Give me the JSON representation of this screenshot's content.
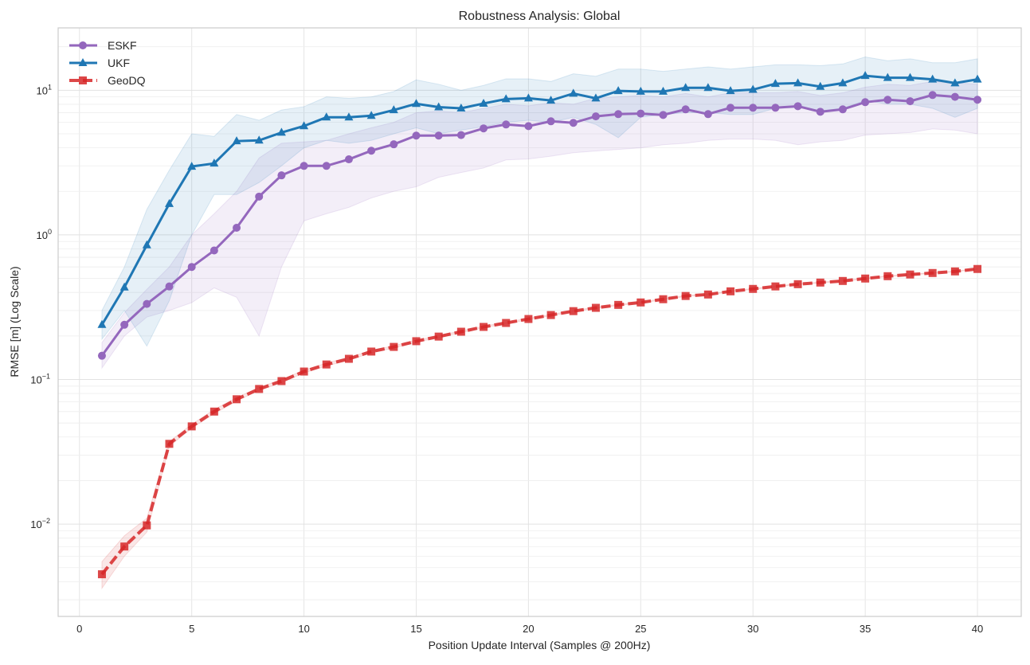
{
  "chart_data": {
    "type": "line",
    "title": "Robustness Analysis: Global",
    "xlabel": "Position Update Interval (Samples @ 200Hz)",
    "ylabel": "RMSE [m] (Log Scale)",
    "xlim": [
      -0.95,
      41.95
    ],
    "ylim": [
      0.0023,
      27
    ],
    "yscale": "log",
    "grid": true,
    "legend_position": "top-left",
    "xticks": [
      0,
      5,
      10,
      15,
      20,
      25,
      30,
      35,
      40
    ],
    "yticks": [
      {
        "value": 0.01,
        "base": "10",
        "exp": "−2"
      },
      {
        "value": 0.1,
        "base": "10",
        "exp": "−1"
      },
      {
        "value": 1,
        "base": "10",
        "exp": "0"
      },
      {
        "value": 10,
        "base": "10",
        "exp": "1"
      }
    ],
    "x": [
      1,
      2,
      3,
      4,
      5,
      6,
      7,
      8,
      9,
      10,
      11,
      12,
      13,
      14,
      15,
      16,
      17,
      18,
      19,
      20,
      21,
      22,
      23,
      24,
      25,
      26,
      27,
      28,
      29,
      30,
      31,
      32,
      33,
      34,
      35,
      36,
      37,
      38,
      39,
      40
    ],
    "series": [
      {
        "name": "ESKF",
        "color": "#9467bd",
        "marker": "circle",
        "linestyle": "solid",
        "values": [
          0.146,
          0.239,
          0.333,
          0.44,
          0.6,
          0.78,
          1.12,
          1.84,
          2.58,
          3.0,
          3.0,
          3.33,
          3.82,
          4.23,
          4.86,
          4.86,
          4.9,
          5.45,
          5.8,
          5.65,
          6.1,
          5.95,
          6.6,
          6.84,
          6.9,
          6.75,
          7.38,
          6.84,
          7.57,
          7.57,
          7.57,
          7.76,
          7.1,
          7.38,
          8.27,
          8.6,
          8.4,
          9.27,
          9.0,
          8.6
        ],
        "lower": [
          0.12,
          0.2,
          0.27,
          0.3,
          0.34,
          0.43,
          0.37,
          0.2,
          0.6,
          1.25,
          1.4,
          1.55,
          1.8,
          2.0,
          2.15,
          2.5,
          2.7,
          2.9,
          3.3,
          3.35,
          3.5,
          3.7,
          3.8,
          3.9,
          4.0,
          4.2,
          4.3,
          4.5,
          4.6,
          4.6,
          4.5,
          4.2,
          4.4,
          4.5,
          4.9,
          5.0,
          5.1,
          5.4,
          5.3,
          5.0
        ],
        "upper": [
          0.18,
          0.29,
          0.42,
          0.6,
          1.0,
          1.4,
          2.0,
          3.4,
          4.3,
          4.4,
          4.5,
          5.0,
          5.5,
          6.0,
          7.0,
          7.2,
          7.0,
          7.5,
          8.0,
          7.8,
          8.2,
          8.0,
          8.8,
          9.0,
          9.2,
          9.0,
          9.5,
          9.0,
          9.6,
          9.6,
          9.6,
          9.8,
          9.2,
          9.6,
          10.5,
          11.0,
          10.8,
          11.5,
          11.3,
          11.0
        ]
      },
      {
        "name": "UKF",
        "color": "#1f77b4",
        "marker": "triangle",
        "linestyle": "solid",
        "values": [
          0.239,
          0.434,
          0.85,
          1.64,
          2.97,
          3.12,
          4.45,
          4.5,
          5.1,
          5.66,
          6.5,
          6.5,
          6.67,
          7.3,
          8.07,
          7.65,
          7.5,
          8.1,
          8.7,
          8.8,
          8.5,
          9.5,
          8.8,
          9.9,
          9.8,
          9.8,
          10.4,
          10.4,
          9.9,
          10.1,
          11.1,
          11.2,
          10.6,
          11.2,
          12.6,
          12.2,
          12.2,
          11.9,
          11.2,
          11.9
        ],
        "lower": [
          0.19,
          0.3,
          0.17,
          0.35,
          1.0,
          1.9,
          1.9,
          2.3,
          3.0,
          4.0,
          4.5,
          4.3,
          4.5,
          5.0,
          5.5,
          5.0,
          5.3,
          5.6,
          6.0,
          6.2,
          6.0,
          6.5,
          5.8,
          4.7,
          6.5,
          6.8,
          7.0,
          7.0,
          6.8,
          6.8,
          7.5,
          7.6,
          7.2,
          7.5,
          8.5,
          8.0,
          8.0,
          7.5,
          6.5,
          7.5
        ],
        "upper": [
          0.3,
          0.6,
          1.5,
          2.8,
          5.0,
          4.8,
          6.8,
          6.2,
          7.3,
          7.7,
          9.0,
          8.8,
          9.0,
          9.8,
          11.8,
          11.0,
          10.0,
          10.8,
          12.0,
          12.0,
          11.5,
          13.0,
          12.5,
          14.0,
          14.0,
          13.5,
          14.0,
          14.5,
          14.0,
          14.5,
          15.0,
          15.0,
          14.8,
          15.2,
          17.0,
          16.0,
          16.5,
          15.5,
          15.5,
          16.5
        ]
      },
      {
        "name": "GeoDQ",
        "color": "#d62728",
        "marker": "square",
        "linestyle": "dashed",
        "values": [
          0.0045,
          0.007,
          0.0098,
          0.0359,
          0.0474,
          0.06,
          0.073,
          0.086,
          0.0975,
          0.1135,
          0.127,
          0.139,
          0.156,
          0.168,
          0.184,
          0.198,
          0.214,
          0.231,
          0.246,
          0.262,
          0.279,
          0.297,
          0.313,
          0.328,
          0.341,
          0.359,
          0.378,
          0.387,
          0.407,
          0.423,
          0.44,
          0.456,
          0.468,
          0.48,
          0.499,
          0.518,
          0.532,
          0.545,
          0.559,
          0.581
        ],
        "lower": [
          0.0036,
          0.006,
          0.0088,
          0.0345,
          0.046,
          0.058,
          0.071,
          0.084,
          0.095,
          0.111,
          0.124,
          0.136,
          0.153,
          0.165,
          0.181,
          0.195,
          0.211,
          0.228,
          0.243,
          0.259,
          0.276,
          0.294,
          0.31,
          0.325,
          0.338,
          0.356,
          0.375,
          0.384,
          0.404,
          0.42,
          0.437,
          0.453,
          0.465,
          0.477,
          0.496,
          0.515,
          0.529,
          0.542,
          0.556,
          0.578
        ],
        "upper": [
          0.0055,
          0.0083,
          0.011,
          0.0373,
          0.049,
          0.062,
          0.075,
          0.088,
          0.1,
          0.116,
          0.13,
          0.142,
          0.159,
          0.171,
          0.187,
          0.201,
          0.217,
          0.234,
          0.249,
          0.265,
          0.282,
          0.3,
          0.316,
          0.331,
          0.344,
          0.362,
          0.381,
          0.39,
          0.41,
          0.426,
          0.443,
          0.459,
          0.471,
          0.483,
          0.502,
          0.521,
          0.535,
          0.548,
          0.562,
          0.584
        ]
      }
    ]
  }
}
